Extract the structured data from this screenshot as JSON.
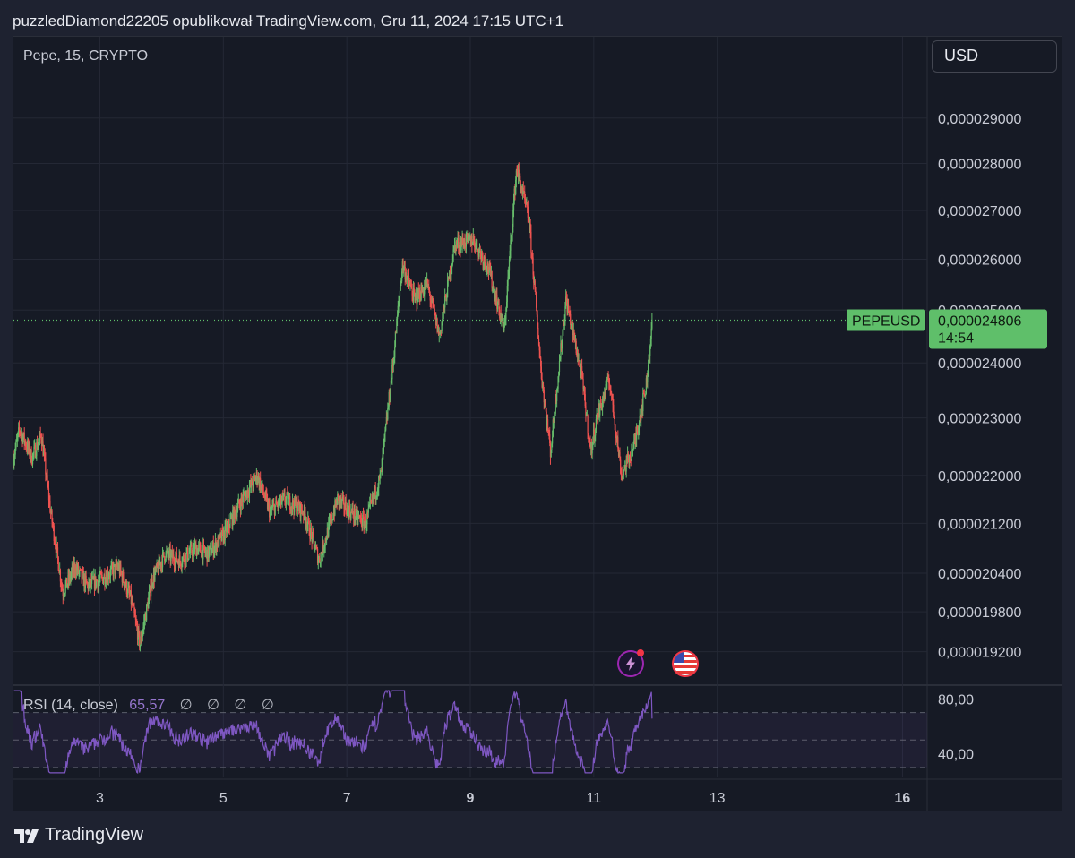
{
  "header": {
    "caption": "puzzledDiamond22205 opublikował TradingView.com, Gru 11, 2024 17:15 UTC+1"
  },
  "legend": {
    "symbol_info": "Pepe, 15, CRYPTO"
  },
  "currency_button": {
    "label": "USD"
  },
  "price_tag": {
    "symbol": "PEPEUSD",
    "price": "0,000024806",
    "countdown": "14:54"
  },
  "rsi": {
    "title": "RSI (14, close)",
    "value": "65,57",
    "na_marks": [
      "∅",
      "∅",
      "∅",
      "∅"
    ],
    "axis_labels": [
      "80,00",
      "40,00"
    ]
  },
  "footer": {
    "brand": "TradingView"
  },
  "icons": {
    "flash": "flash-lightning-icon",
    "flag": "us-flag-icon",
    "logo": "tradingview-logo-icon"
  },
  "colors": {
    "background": "#161a25",
    "up": "#26a69a",
    "up_light": "#66bb6a",
    "down": "#ef5350",
    "rsi_line": "#7e57c2",
    "last_price": "#5fbf6a"
  },
  "chart_data": [
    {
      "type": "candlestick",
      "title": "Pepe, 15, CRYPTO",
      "symbol": "PEPEUSD",
      "y_axis_scale": "log",
      "y_ticks": [
        "0,000029000",
        "0,000028000",
        "0,000027000",
        "0,000026000",
        "0,000025000",
        "0,000024000",
        "0,000023000",
        "0,000022000",
        "0,000021200",
        "0,000020400",
        "0,000019800",
        "0,000019200"
      ],
      "y_tick_values": [
        2.9e-05,
        2.8e-05,
        2.7e-05,
        2.6e-05,
        2.5e-05,
        2.4e-05,
        2.3e-05,
        2.2e-05,
        2.12e-05,
        2.04e-05,
        1.98e-05,
        1.92e-05
      ],
      "x_ticks": [
        "3",
        "5",
        "7",
        "9",
        "11",
        "13",
        "16"
      ],
      "x_tick_days": [
        3,
        5,
        7,
        9,
        11,
        13,
        16
      ],
      "x_bold_ticks": [
        "9",
        "16"
      ],
      "ylim": [
        1.88e-05,
        3.01e-05
      ],
      "xlim_days": [
        1.6,
        16.4
      ],
      "last_price": 2.4806e-05,
      "price_path": [
        {
          "day": 1.6,
          "price": 2.23e-05
        },
        {
          "day": 1.7,
          "price": 2.28e-05
        },
        {
          "day": 1.9,
          "price": 2.23e-05
        },
        {
          "day": 2.05,
          "price": 2.27e-05
        },
        {
          "day": 2.2,
          "price": 2.14e-05
        },
        {
          "day": 2.4,
          "price": 2.01e-05
        },
        {
          "day": 2.6,
          "price": 2.05e-05
        },
        {
          "day": 2.8,
          "price": 2.02e-05
        },
        {
          "day": 3.0,
          "price": 2.03e-05
        },
        {
          "day": 3.3,
          "price": 2.05e-05
        },
        {
          "day": 3.5,
          "price": 2e-05
        },
        {
          "day": 3.65,
          "price": 1.93e-05
        },
        {
          "day": 3.85,
          "price": 2.03e-05
        },
        {
          "day": 4.05,
          "price": 2.07e-05
        },
        {
          "day": 4.3,
          "price": 2.06e-05
        },
        {
          "day": 4.55,
          "price": 2.08e-05
        },
        {
          "day": 4.75,
          "price": 2.07e-05
        },
        {
          "day": 5.0,
          "price": 2.1e-05
        },
        {
          "day": 5.25,
          "price": 2.15e-05
        },
        {
          "day": 5.55,
          "price": 2.2e-05
        },
        {
          "day": 5.75,
          "price": 2.14e-05
        },
        {
          "day": 6.0,
          "price": 2.16e-05
        },
        {
          "day": 6.3,
          "price": 2.14e-05
        },
        {
          "day": 6.55,
          "price": 2.06e-05
        },
        {
          "day": 6.85,
          "price": 2.16e-05
        },
        {
          "day": 7.05,
          "price": 2.14e-05
        },
        {
          "day": 7.3,
          "price": 2.12e-05
        },
        {
          "day": 7.55,
          "price": 2.2e-05
        },
        {
          "day": 7.75,
          "price": 2.4e-05
        },
        {
          "day": 7.9,
          "price": 2.59e-05
        },
        {
          "day": 8.1,
          "price": 2.52e-05
        },
        {
          "day": 8.3,
          "price": 2.55e-05
        },
        {
          "day": 8.5,
          "price": 2.45e-05
        },
        {
          "day": 8.75,
          "price": 2.63e-05
        },
        {
          "day": 9.05,
          "price": 2.64e-05
        },
        {
          "day": 9.3,
          "price": 2.58e-05
        },
        {
          "day": 9.55,
          "price": 2.46e-05
        },
        {
          "day": 9.75,
          "price": 2.79e-05
        },
        {
          "day": 9.95,
          "price": 2.68e-05
        },
        {
          "day": 10.15,
          "price": 2.38e-05
        },
        {
          "day": 10.3,
          "price": 2.24e-05
        },
        {
          "day": 10.55,
          "price": 2.52e-05
        },
        {
          "day": 10.8,
          "price": 2.38e-05
        },
        {
          "day": 10.95,
          "price": 2.24e-05
        },
        {
          "day": 11.05,
          "price": 2.3e-05
        },
        {
          "day": 11.25,
          "price": 2.37e-05
        },
        {
          "day": 11.45,
          "price": 2.2e-05
        },
        {
          "day": 11.65,
          "price": 2.25e-05
        },
        {
          "day": 11.85,
          "price": 2.36e-05
        },
        {
          "day": 11.95,
          "price": 2.48e-05
        }
      ]
    },
    {
      "type": "line",
      "title": "RSI (14, close)",
      "last_value": 65.57,
      "levels": [
        70,
        50,
        30
      ],
      "y_ticks": [
        "80,00",
        "40,00"
      ],
      "y_tick_values": [
        80,
        40
      ],
      "ylim": [
        24,
        88
      ],
      "x_range_days": [
        1.6,
        11.95
      ]
    }
  ]
}
